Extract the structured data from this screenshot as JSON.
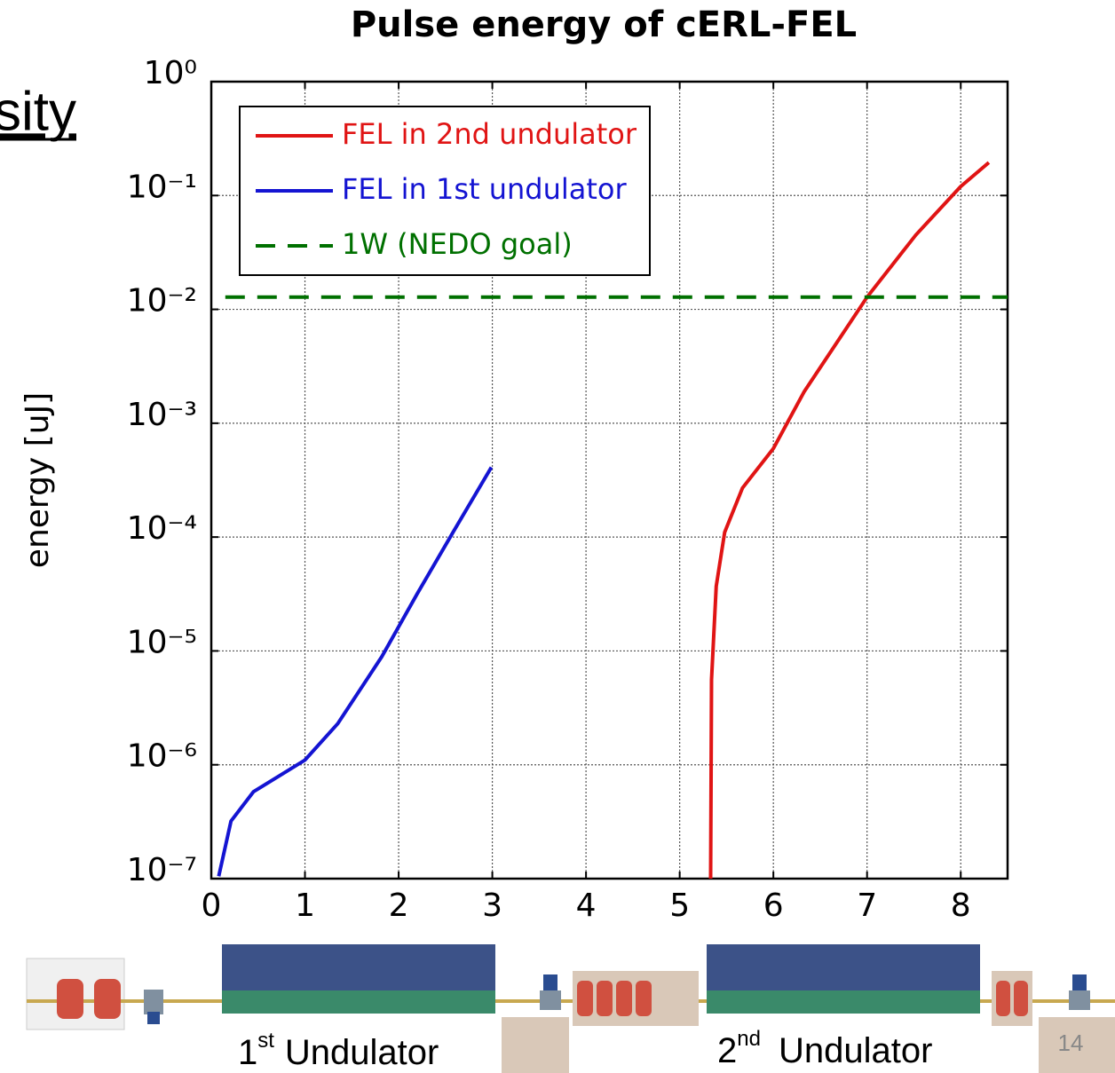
{
  "slide": {
    "title_fragment": "sity",
    "page_number": "14",
    "undulator_labels": [
      {
        "number": "1",
        "suffix": "st",
        "text": "Undulator"
      },
      {
        "number": "2",
        "suffix": "nd",
        "text": "Undulator"
      }
    ]
  },
  "chart_data": {
    "type": "line",
    "title": "Pulse energy of cERL-FEL",
    "y_label": "energy [uJ]",
    "yscale": "log",
    "grid": true,
    "legend": "upper left",
    "xlim": [
      0,
      8.5
    ],
    "xticks": [
      0,
      1,
      2,
      3,
      4,
      5,
      6,
      7,
      8
    ],
    "ylim": [
      1e-07,
      1
    ],
    "yticks": [
      {
        "value": 1,
        "label": "10⁰"
      },
      {
        "value": 0.1,
        "label": "10⁻¹"
      },
      {
        "value": 0.01,
        "label": "10⁻²"
      },
      {
        "value": 0.001,
        "label": "10⁻³"
      },
      {
        "value": 0.0001,
        "label": "10⁻⁴"
      },
      {
        "value": 1e-05,
        "label": "10⁻⁵"
      },
      {
        "value": 1e-06,
        "label": "10⁻⁶"
      },
      {
        "value": 1e-07,
        "label": "10⁻⁷"
      }
    ],
    "series": [
      {
        "name": "FEL in 2nd undulator",
        "color": "#e01414",
        "dash": false,
        "x": [
          5.33,
          5.34,
          5.39,
          5.48,
          5.67,
          6.0,
          6.33,
          7.0,
          7.52,
          8.0,
          8.3
        ],
        "values": [
          1e-07,
          5.6e-06,
          3.7e-05,
          0.00011,
          0.00027,
          0.0006,
          0.0019,
          0.0128,
          0.045,
          0.12,
          0.195
        ]
      },
      {
        "name": "FEL in 1st undulator",
        "color": "#1414d2",
        "dash": false,
        "x": [
          0.08,
          0.21,
          0.45,
          1.0,
          1.35,
          1.82,
          2.2,
          2.58,
          2.99
        ],
        "values": [
          1.05e-07,
          3.2e-07,
          5.8e-07,
          1.1e-06,
          2.3e-06,
          8.9e-06,
          3.2e-05,
          0.00011,
          0.00041
        ]
      },
      {
        "name": "1W (NEDO goal)",
        "color": "#007000",
        "dash": true,
        "x": [
          0.15,
          8.5
        ],
        "values": [
          0.0128,
          0.0128
        ]
      }
    ]
  }
}
